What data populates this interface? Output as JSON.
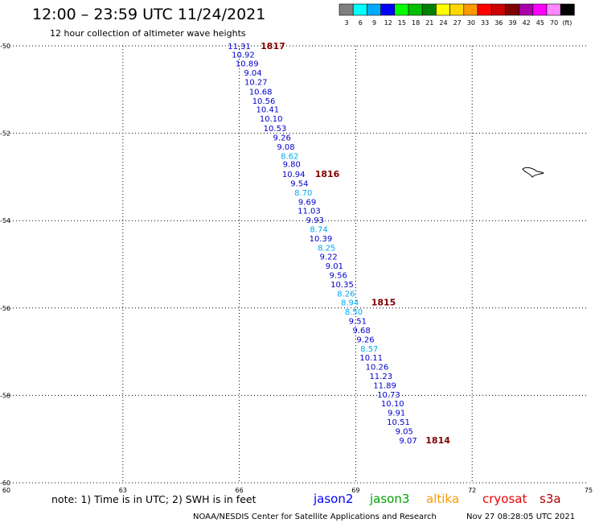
{
  "header": {
    "title": "12:00 – 23:59 UTC 11/24/2021",
    "subtitle": "12 hour collection of altimeter wave heights"
  },
  "legend": {
    "unit": "(ft)",
    "bins": [
      {
        "label": "3",
        "color": "#7f7f7f"
      },
      {
        "label": "6",
        "color": "#00ffff"
      },
      {
        "label": "9",
        "color": "#00aaff"
      },
      {
        "label": "12",
        "color": "#0000ff"
      },
      {
        "label": "15",
        "color": "#00ff00"
      },
      {
        "label": "18",
        "color": "#00c000"
      },
      {
        "label": "21",
        "color": "#008000"
      },
      {
        "label": "24",
        "color": "#ffff00"
      },
      {
        "label": "27",
        "color": "#ffd700"
      },
      {
        "label": "30",
        "color": "#ff9900"
      },
      {
        "label": "33",
        "color": "#ff0000"
      },
      {
        "label": "36",
        "color": "#cc0000"
      },
      {
        "label": "39",
        "color": "#800000"
      },
      {
        "label": "42",
        "color": "#aa00aa"
      },
      {
        "label": "45",
        "color": "#ff00ff"
      },
      {
        "label": "70",
        "color": "#ff88ff"
      },
      {
        "label": "",
        "color": "#000000"
      }
    ]
  },
  "chart_data": {
    "type": "scatter",
    "xlim": [
      60,
      75
    ],
    "ylim": [
      -60,
      -50
    ],
    "x_ticks": [
      "60",
      "63",
      "66",
      "69",
      "72",
      "75"
    ],
    "y_ticks": [
      "-50",
      "-52",
      "-54",
      "-56",
      "-58",
      "-60"
    ],
    "grid": true,
    "points": [
      {
        "v": "11.31",
        "lon": 66.0,
        "lat": -50.0,
        "color": "#0000cc"
      },
      {
        "v": "10.92",
        "lon": 66.1,
        "lat": -50.19,
        "color": "#0000cc"
      },
      {
        "v": "10.89",
        "lon": 66.2,
        "lat": -50.4,
        "color": "#0000cc"
      },
      {
        "v": "9.04",
        "lon": 66.35,
        "lat": -50.61,
        "color": "#0000cc"
      },
      {
        "v": "10.27",
        "lon": 66.43,
        "lat": -50.82,
        "color": "#0000cc"
      },
      {
        "v": "10.68",
        "lon": 66.55,
        "lat": -51.04,
        "color": "#0000cc"
      },
      {
        "v": "10.56",
        "lon": 66.63,
        "lat": -51.25,
        "color": "#0000cc"
      },
      {
        "v": "10.41",
        "lon": 66.73,
        "lat": -51.45,
        "color": "#0000cc"
      },
      {
        "v": "10.10",
        "lon": 66.82,
        "lat": -51.66,
        "color": "#0000cc"
      },
      {
        "v": "10.53",
        "lon": 66.92,
        "lat": -51.88,
        "color": "#0000cc"
      },
      {
        "v": "9.26",
        "lon": 67.1,
        "lat": -52.09,
        "color": "#0000cc"
      },
      {
        "v": "9.08",
        "lon": 67.2,
        "lat": -52.3,
        "color": "#0000cc"
      },
      {
        "v": "8.62",
        "lon": 67.3,
        "lat": -52.51,
        "color": "#00aaee"
      },
      {
        "v": "9.80",
        "lon": 67.35,
        "lat": -52.7,
        "color": "#0000cc"
      },
      {
        "v": "10.94",
        "lon": 67.4,
        "lat": -52.93,
        "color": "#0000cc"
      },
      {
        "v": "9.54",
        "lon": 67.55,
        "lat": -53.14,
        "color": "#0000cc"
      },
      {
        "v": "8.70",
        "lon": 67.65,
        "lat": -53.35,
        "color": "#00aaee"
      },
      {
        "v": "9.69",
        "lon": 67.75,
        "lat": -53.56,
        "color": "#0000cc"
      },
      {
        "v": "11.03",
        "lon": 67.8,
        "lat": -53.77,
        "color": "#0000cc"
      },
      {
        "v": "9.93",
        "lon": 67.95,
        "lat": -53.98,
        "color": "#0000cc"
      },
      {
        "v": "8.74",
        "lon": 68.05,
        "lat": -54.19,
        "color": "#00aaee"
      },
      {
        "v": "10.39",
        "lon": 68.1,
        "lat": -54.4,
        "color": "#0000cc"
      },
      {
        "v": "8.25",
        "lon": 68.25,
        "lat": -54.61,
        "color": "#00aaee"
      },
      {
        "v": "9.22",
        "lon": 68.3,
        "lat": -54.82,
        "color": "#0000cc"
      },
      {
        "v": "9.01",
        "lon": 68.45,
        "lat": -55.03,
        "color": "#0000cc"
      },
      {
        "v": "9.56",
        "lon": 68.55,
        "lat": -55.24,
        "color": "#0000cc"
      },
      {
        "v": "10.35",
        "lon": 68.65,
        "lat": -55.45,
        "color": "#0000cc"
      },
      {
        "v": "8.26",
        "lon": 68.75,
        "lat": -55.66,
        "color": "#00aaee"
      },
      {
        "v": "8.94",
        "lon": 68.85,
        "lat": -55.87,
        "color": "#00aaee"
      },
      {
        "v": "8.50",
        "lon": 68.95,
        "lat": -56.08,
        "color": "#00aaee"
      },
      {
        "v": "9.51",
        "lon": 69.05,
        "lat": -56.29,
        "color": "#0000cc"
      },
      {
        "v": "9.68",
        "lon": 69.15,
        "lat": -56.5,
        "color": "#0000cc"
      },
      {
        "v": "9.26",
        "lon": 69.25,
        "lat": -56.71,
        "color": "#0000cc"
      },
      {
        "v": "8.57",
        "lon": 69.35,
        "lat": -56.92,
        "color": "#00aaee"
      },
      {
        "v": "10.11",
        "lon": 69.4,
        "lat": -57.13,
        "color": "#0000cc"
      },
      {
        "v": "10.26",
        "lon": 69.55,
        "lat": -57.34,
        "color": "#0000cc"
      },
      {
        "v": "11.23",
        "lon": 69.65,
        "lat": -57.55,
        "color": "#0000cc"
      },
      {
        "v": "11.89",
        "lon": 69.75,
        "lat": -57.76,
        "color": "#0000cc"
      },
      {
        "v": "10.73",
        "lon": 69.85,
        "lat": -57.97,
        "color": "#0000cc"
      },
      {
        "v": "10.10",
        "lon": 69.95,
        "lat": -58.18,
        "color": "#0000cc"
      },
      {
        "v": "9.91",
        "lon": 70.05,
        "lat": -58.39,
        "color": "#0000cc"
      },
      {
        "v": "10.51",
        "lon": 70.1,
        "lat": -58.6,
        "color": "#0000cc"
      },
      {
        "v": "9.05",
        "lon": 70.25,
        "lat": -58.81,
        "color": "#0000cc"
      },
      {
        "v": "9.07",
        "lon": 70.35,
        "lat": -59.02,
        "color": "#0000cc"
      }
    ],
    "passes": [
      {
        "label": "1817",
        "lon": 66.55,
        "lat": -50.0
      },
      {
        "label": "1816",
        "lon": 67.95,
        "lat": -52.93
      },
      {
        "label": "1815",
        "lon": 69.4,
        "lat": -55.87
      },
      {
        "label": "1814",
        "lon": 70.8,
        "lat": -59.02
      }
    ]
  },
  "notes": {
    "note_text": "note: 1) Time is in UTC; 2) SWH is in feet",
    "satellites": [
      {
        "name": "jason2",
        "color": "#0000ff"
      },
      {
        "name": "jason3",
        "color": "#00a000"
      },
      {
        "name": "altika",
        "color": "#ff9900"
      },
      {
        "name": "cryosat",
        "color": "#ee0000"
      },
      {
        "name": "s3a",
        "color": "#b00000"
      }
    ]
  },
  "footer": {
    "credit": "NOAA/NESDIS Center for Satellite Applications and Research",
    "timestamp": "Nov 27 08:28:05 UTC 2021"
  }
}
